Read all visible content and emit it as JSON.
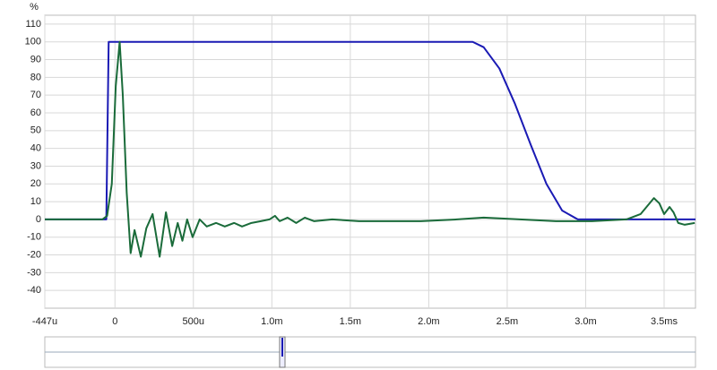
{
  "chart_data": {
    "type": "line",
    "y_label": "%",
    "xlim": [
      -0.447,
      3.7
    ],
    "ylim": [
      -50,
      115
    ],
    "xticks": [
      {
        "value": -0.447,
        "label": "-447u"
      },
      0,
      {
        "value": 0.5,
        "label": "500u"
      },
      {
        "value": 1.0,
        "label": "1.0m"
      },
      {
        "value": 1.5,
        "label": "1.5m"
      },
      {
        "value": 2.0,
        "label": "2.0m"
      },
      {
        "value": 2.5,
        "label": "2.5m"
      },
      {
        "value": 3.0,
        "label": "3.0m"
      },
      {
        "value": 3.5,
        "label": "3.5ms"
      }
    ],
    "yticks": [
      110,
      100,
      90,
      80,
      70,
      60,
      50,
      40,
      30,
      20,
      10,
      0,
      -10,
      -20,
      -30,
      -40
    ],
    "grid": true,
    "series": [
      {
        "color": "#1a1ab4",
        "x": [
          -0.447,
          -0.055,
          -0.04,
          2.28,
          2.35,
          2.45,
          2.55,
          2.65,
          2.75,
          2.85,
          2.95,
          3.7
        ],
        "values": [
          0,
          0,
          100,
          100,
          97,
          85,
          65,
          42,
          20,
          5,
          0,
          0
        ]
      },
      {
        "color": "#1a6b3a",
        "x": [
          -0.447,
          -0.08,
          -0.05,
          -0.02,
          0.005,
          0.03,
          0.05,
          0.075,
          0.1,
          0.125,
          0.165,
          0.2,
          0.24,
          0.285,
          0.325,
          0.365,
          0.4,
          0.43,
          0.46,
          0.495,
          0.54,
          0.585,
          0.645,
          0.7,
          0.76,
          0.81,
          0.87,
          0.93,
          0.985,
          1.02,
          1.05,
          1.1,
          1.155,
          1.21,
          1.27,
          1.385,
          1.555,
          1.725,
          1.95,
          2.18,
          2.35,
          2.58,
          2.81,
          3.04,
          3.26,
          3.35,
          3.435,
          3.47,
          3.5,
          3.535,
          3.56,
          3.59,
          3.63,
          3.695
        ],
        "values": [
          0,
          0,
          2,
          20,
          75,
          100,
          70,
          15,
          -19,
          -6,
          -21,
          -5,
          3,
          -21,
          4,
          -15,
          -2,
          -12,
          0,
          -10,
          0,
          -4,
          -2,
          -4,
          -2,
          -4,
          -2,
          -1,
          0,
          2,
          -1,
          1,
          -2,
          1,
          -1,
          0,
          -1,
          -1,
          -1,
          0,
          1,
          0,
          -1,
          -1,
          0,
          3,
          12,
          9,
          3,
          7,
          4,
          -2,
          -3,
          -2
        ]
      }
    ]
  }
}
